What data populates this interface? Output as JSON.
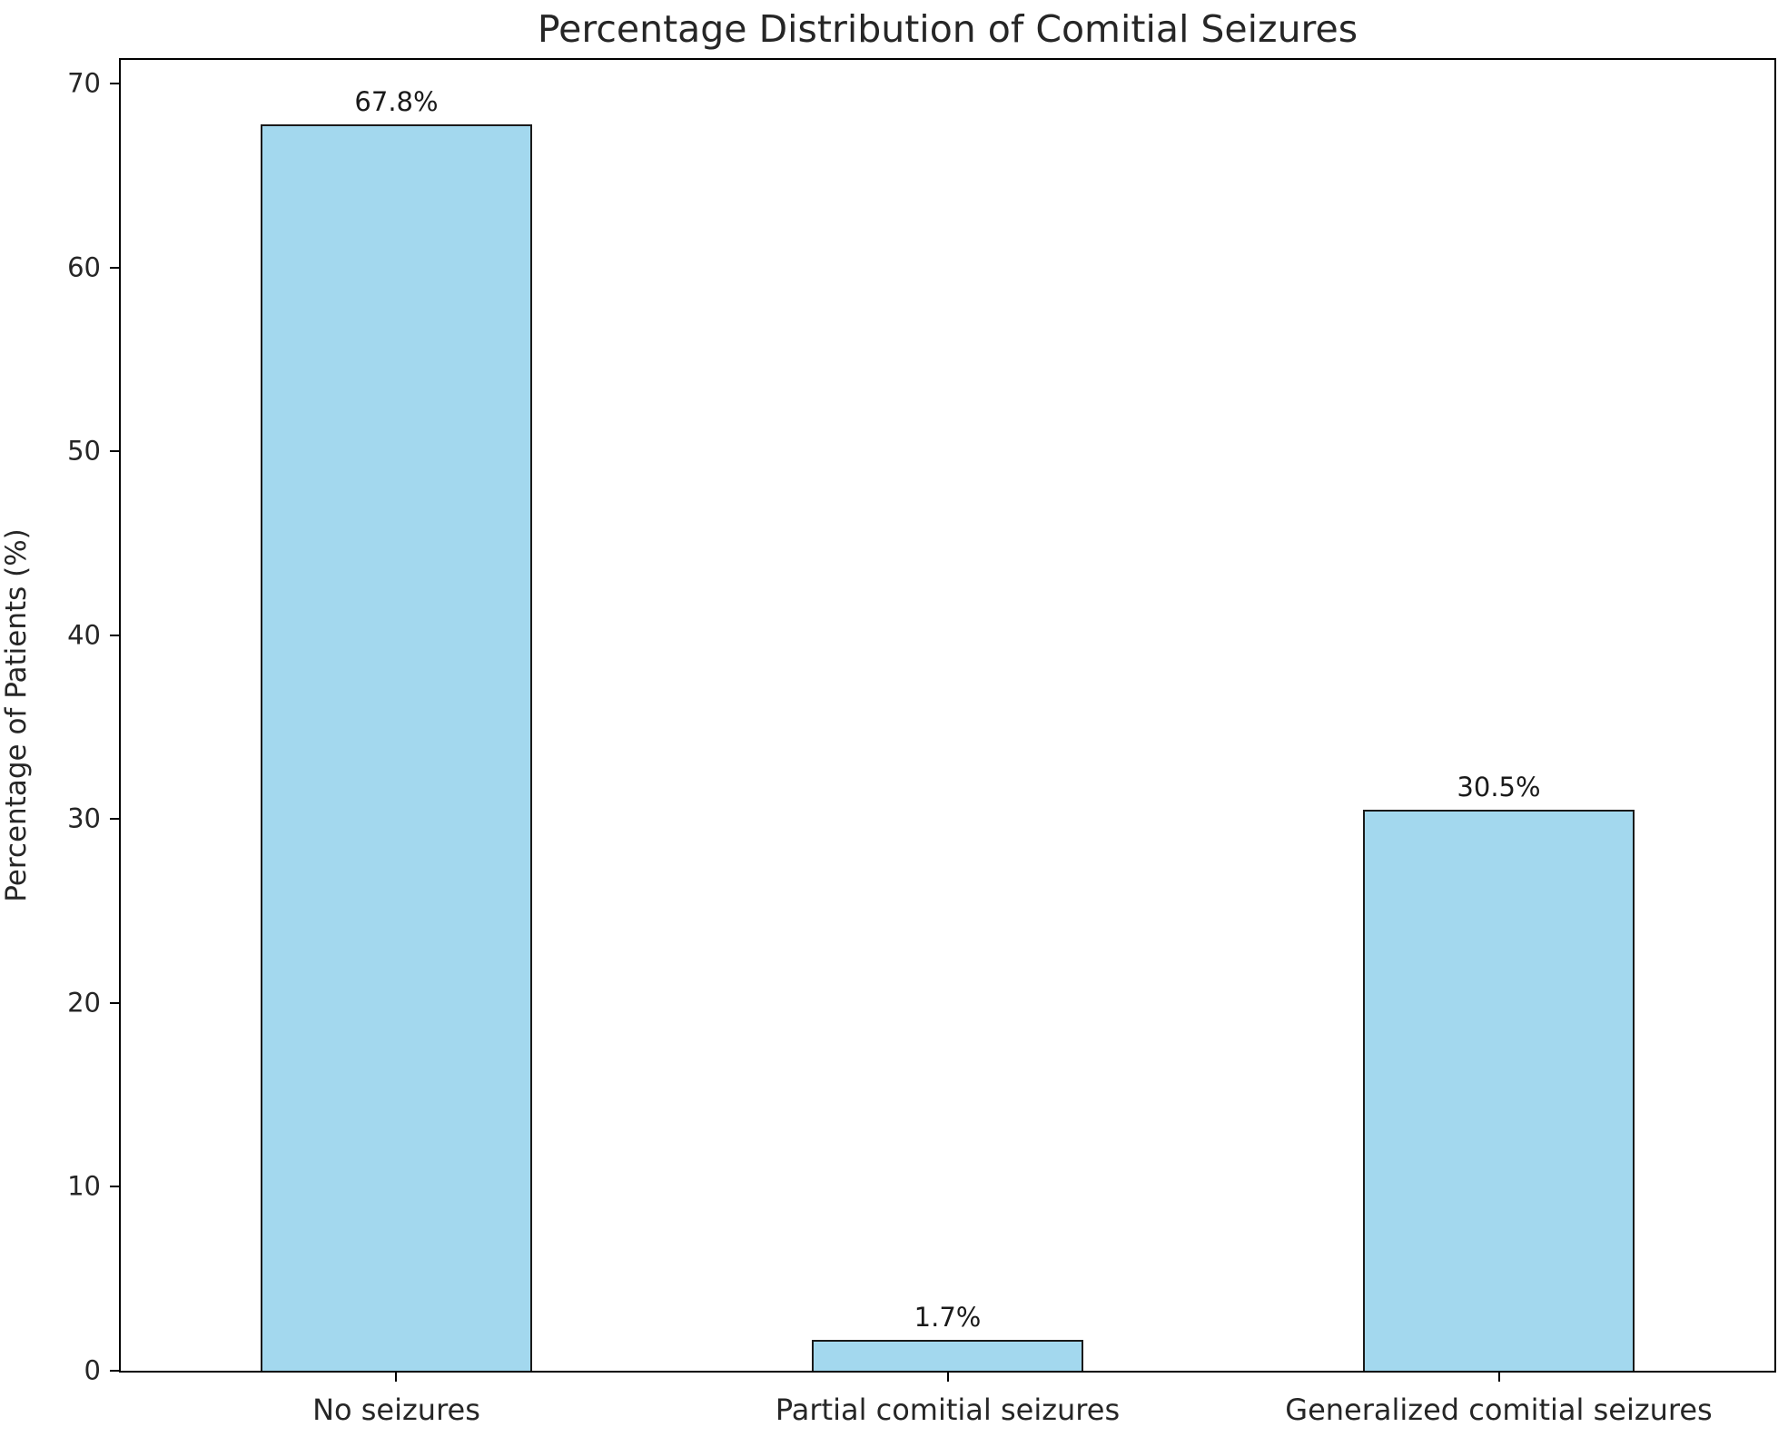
{
  "figure": {
    "background_color": "#ffffff",
    "frame_color": "#000000",
    "text_color": "#262626"
  },
  "chart_data": {
    "type": "bar",
    "title": "Percentage Distribution of Comitial Seizures",
    "categories": [
      "No seizures",
      "Partial comitial seizures",
      "Generalized comitial seizures"
    ],
    "values": [
      67.8,
      1.7,
      30.5
    ],
    "value_labels": [
      "67.8%",
      "1.7%",
      "30.5%"
    ],
    "xlabel": "",
    "ylabel": "Percentage of Patients (%)",
    "yticks": [
      0,
      10,
      20,
      30,
      40,
      50,
      60,
      70
    ],
    "ylim": [
      0,
      71.3
    ],
    "bar_color": "#a3d8ee",
    "bar_edge_color": "#1a1a1a",
    "grid": false,
    "legend": null
  }
}
